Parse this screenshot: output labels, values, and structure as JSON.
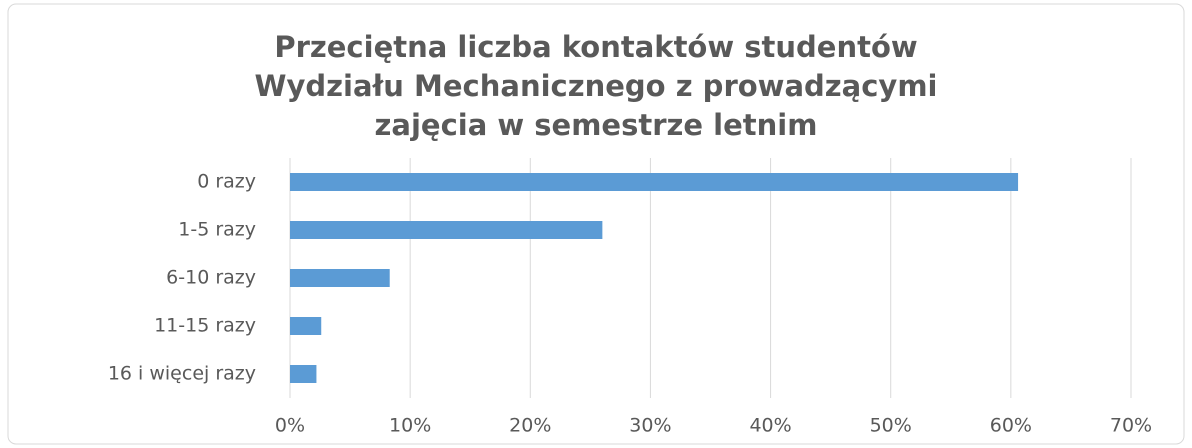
{
  "chart_data": {
    "type": "hbar",
    "title": "Przeciętna liczba kontaktów studentów\nWydziału Mechanicznego z prowadzącymi\nzajęcia w semestrze letnim",
    "categories": [
      "0 razy",
      "1-5 razy",
      "6-10 razy",
      "11-15 razy",
      "16 i więcej razy"
    ],
    "values": [
      60.6,
      26.0,
      8.3,
      2.6,
      2.2
    ],
    "color": "#5b9bd5",
    "xlim": [
      0,
      70
    ],
    "xticks": [
      {
        "value": 0,
        "label": "0%"
      },
      {
        "value": 10,
        "label": "10%"
      },
      {
        "value": 20,
        "label": "20%"
      },
      {
        "value": 30,
        "label": "30%"
      },
      {
        "value": 40,
        "label": "40%"
      },
      {
        "value": 50,
        "label": "50%"
      },
      {
        "value": 60,
        "label": "60%"
      },
      {
        "value": 70,
        "label": "70%"
      }
    ],
    "grid": true
  }
}
